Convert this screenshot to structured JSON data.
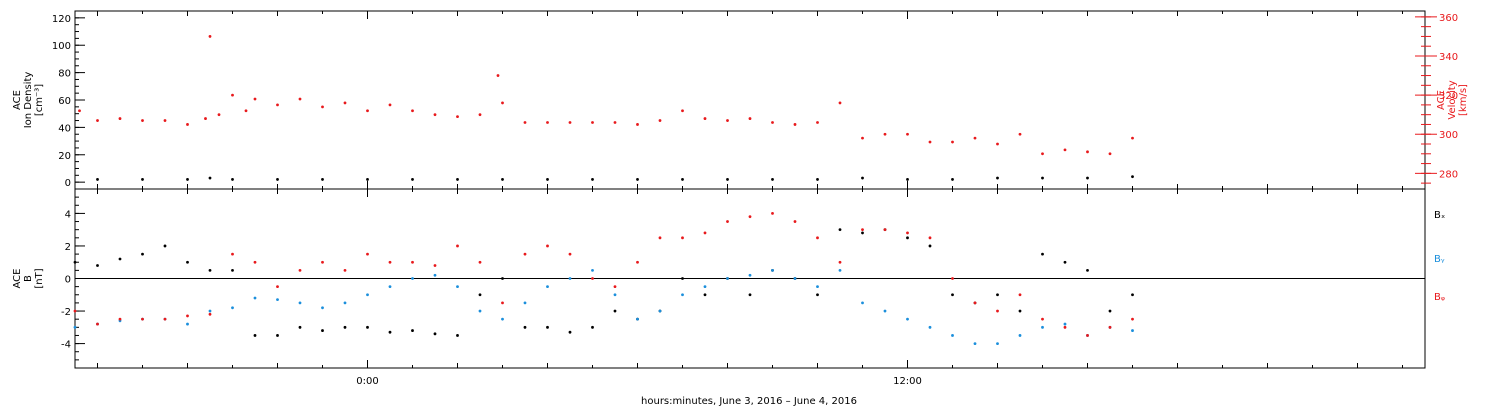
{
  "xaxis": {
    "label": "hours:minutes, June  3, 2016 – June  4, 2016",
    "range_hours": [
      -6.5,
      23.5
    ],
    "major_ticks": [
      {
        "hours": 0,
        "label": "0:00"
      },
      {
        "hours": 12,
        "label": "12:00"
      }
    ]
  },
  "colors": {
    "black": "#000000",
    "red": "#e8191c",
    "blue": "#1b8fdc"
  },
  "chart_data": [
    {
      "type": "scatter",
      "ylabel_lines": [
        "ACE",
        "Ion Density",
        "[cm⁻³]"
      ],
      "ylim": [
        -5,
        125
      ],
      "y_ticks": [
        "0",
        "20",
        "40",
        "60",
        "80",
        "100",
        "120"
      ],
      "right_axis": {
        "label_lines": [
          "ACE",
          "Velocity",
          "[km/s]"
        ],
        "ylim": [
          272,
          363
        ],
        "y_ticks": [
          "280",
          "300",
          "320",
          "340",
          "360"
        ]
      },
      "series": [
        {
          "color": "#000000",
          "axis": "left",
          "x": [
            -6.0,
            -5.0,
            -4.0,
            -3.5,
            -3.0,
            -2.0,
            -1.0,
            0.0,
            1.0,
            2.0,
            3.0,
            4.0,
            5.0,
            6.0,
            7.0,
            8.0,
            9.0,
            10.0,
            11.0,
            12.0,
            13.0,
            14.0,
            15.0,
            16.0,
            17.0
          ],
          "y": [
            2,
            2,
            2,
            3,
            2,
            2,
            2,
            2,
            2,
            2,
            2,
            2,
            2,
            2,
            2,
            2,
            2,
            2,
            3,
            2,
            2,
            3,
            3,
            3,
            4
          ]
        },
        {
          "color": "#e8191c",
          "axis": "right",
          "x": [
            -6.4,
            -6.0,
            -5.5,
            -5.0,
            -4.5,
            -4.0,
            -3.6,
            -3.5,
            -3.3,
            -3.0,
            -2.7,
            -2.5,
            -2.0,
            -1.5,
            -1.0,
            -0.5,
            0.0,
            0.5,
            1.0,
            1.5,
            2.0,
            2.5,
            2.9,
            3.0,
            3.5,
            4.0,
            4.5,
            5.0,
            5.5,
            6.0,
            6.5,
            7.0,
            7.5,
            8.0,
            8.5,
            9.0,
            9.5,
            10.0,
            10.5,
            11.0,
            11.5,
            12.0,
            12.5,
            13.0,
            13.5,
            14.0,
            14.5,
            15.0,
            15.5,
            16.0,
            16.5,
            17.0
          ],
          "y": [
            312,
            307,
            308,
            307,
            307,
            305,
            308,
            350,
            310,
            320,
            312,
            318,
            315,
            318,
            314,
            316,
            312,
            315,
            312,
            310,
            309,
            310,
            330,
            316,
            306,
            306,
            306,
            306,
            306,
            305,
            307,
            312,
            308,
            307,
            308,
            306,
            305,
            306,
            316,
            298,
            300,
            300,
            296,
            296,
            298,
            295,
            300,
            290,
            292,
            291,
            290,
            298
          ]
        }
      ]
    },
    {
      "type": "scatter",
      "ylabel_lines": [
        "ACE",
        "B",
        "[nT]"
      ],
      "ylim": [
        -5.5,
        5.5
      ],
      "y_ticks": [
        "-4",
        "-2",
        "0",
        "2",
        "4"
      ],
      "zero_line": true,
      "series": [
        {
          "name": "Bₓ",
          "color": "#000000",
          "x": [
            -6.5,
            -6.0,
            -5.5,
            -5.0,
            -4.5,
            -4.0,
            -3.5,
            -3.0,
            -2.5,
            -2.0,
            -1.5,
            -1.0,
            -0.5,
            0.0,
            0.5,
            1.0,
            1.5,
            2.0,
            2.5,
            3.0,
            3.5,
            4.0,
            4.5,
            5.0,
            5.5,
            6.0,
            6.5,
            7.0,
            7.5,
            8.0,
            8.5,
            9.0,
            9.5,
            10.0,
            10.5,
            11.0,
            11.5,
            12.0,
            12.5,
            13.0,
            13.5,
            14.0,
            14.5,
            15.0,
            15.5,
            16.0,
            16.5,
            17.0
          ],
          "y": [
            1.0,
            0.8,
            1.2,
            1.5,
            2.0,
            1.0,
            0.5,
            0.5,
            -3.5,
            -3.5,
            -3.0,
            -3.2,
            -3.0,
            -3.0,
            -3.3,
            -3.2,
            -3.4,
            -3.5,
            -1.0,
            0.0,
            -3.0,
            -3.0,
            -3.3,
            -3.0,
            -2.0,
            -2.5,
            -2.0,
            0.0,
            -1.0,
            0.0,
            -1.0,
            0.5,
            0.0,
            -1.0,
            3.0,
            2.8,
            3.0,
            2.5,
            2.0,
            -1.0,
            -1.5,
            -1.0,
            -2.0,
            1.5,
            1.0,
            0.5,
            -2.0,
            -1.0
          ]
        },
        {
          "name": "Bᵧ",
          "color": "#1b8fdc",
          "x": [
            -6.5,
            -6.0,
            -5.5,
            -5.0,
            -4.5,
            -4.0,
            -3.5,
            -3.0,
            -2.5,
            -2.0,
            -1.5,
            -1.0,
            -0.5,
            0.0,
            0.5,
            1.0,
            1.5,
            2.0,
            2.5,
            3.0,
            3.5,
            4.0,
            4.5,
            5.0,
            5.5,
            6.0,
            6.5,
            7.0,
            7.5,
            8.0,
            8.5,
            9.0,
            9.5,
            10.0,
            10.5,
            11.0,
            11.5,
            12.0,
            12.5,
            13.0,
            13.5,
            14.0,
            14.5,
            15.0,
            15.5,
            16.0,
            16.5,
            17.0
          ],
          "y": [
            -3.0,
            -2.8,
            -2.6,
            -2.5,
            -2.5,
            -2.8,
            -2.0,
            -1.8,
            -1.2,
            -1.3,
            -1.5,
            -1.8,
            -1.5,
            -1.0,
            -0.5,
            0.0,
            0.2,
            -0.5,
            -2.0,
            -2.5,
            -1.5,
            -0.5,
            0.0,
            0.5,
            -1.0,
            -2.5,
            -2.0,
            -1.0,
            -0.5,
            0.0,
            0.2,
            0.5,
            0.0,
            -0.5,
            0.5,
            -1.5,
            -2.0,
            -2.5,
            -3.0,
            -3.5,
            -4.0,
            -4.0,
            -3.5,
            -3.0,
            -2.8,
            -3.5,
            -3.0,
            -3.2
          ]
        },
        {
          "name": "Bᵩ",
          "color": "#e8191c",
          "x": [
            -6.5,
            -6.0,
            -5.5,
            -5.0,
            -4.5,
            -4.0,
            -3.5,
            -3.0,
            -2.5,
            -2.0,
            -1.5,
            -1.0,
            -0.5,
            0.0,
            0.5,
            1.0,
            1.5,
            2.0,
            2.5,
            3.0,
            3.5,
            4.0,
            4.5,
            5.0,
            5.5,
            6.0,
            6.5,
            7.0,
            7.5,
            8.0,
            8.5,
            9.0,
            9.5,
            10.0,
            10.5,
            11.0,
            11.5,
            12.0,
            12.5,
            13.0,
            13.5,
            14.0,
            14.5,
            15.0,
            15.5,
            16.0,
            16.5,
            17.0
          ],
          "y": [
            -2.0,
            -2.8,
            -2.5,
            -2.5,
            -2.5,
            -2.3,
            -2.2,
            1.5,
            1.0,
            -0.5,
            0.5,
            1.0,
            0.5,
            1.5,
            1.0,
            1.0,
            0.8,
            2.0,
            1.0,
            -1.5,
            1.5,
            2.0,
            1.5,
            0.0,
            -0.5,
            1.0,
            2.5,
            2.5,
            2.8,
            3.5,
            3.8,
            4.0,
            3.5,
            2.5,
            1.0,
            3.0,
            3.0,
            2.8,
            2.5,
            0.0,
            -1.5,
            -2.0,
            -1.0,
            -2.5,
            -3.0,
            -3.5,
            -3.0,
            -2.5
          ]
        }
      ]
    }
  ]
}
